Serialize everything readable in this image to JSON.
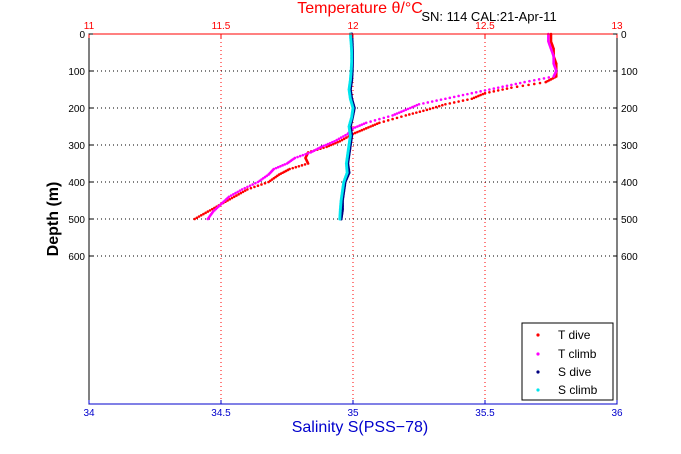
{
  "chart_data": {
    "type": "scatter",
    "title": "Temperature θ/°C",
    "subtitle": "SN: 114  CAL:21-Apr-11",
    "xlabel_top": "Temperature θ/°C",
    "xlabel_bottom": "Salinity S(PSS−78)",
    "ylabel": "Depth (m)",
    "y_axis_reversed": true,
    "ylim": [
      0,
      1000
    ],
    "yticks": [
      "0",
      "100",
      "200",
      "300",
      "400",
      "500",
      "600"
    ],
    "temperature_axis": {
      "range": [
        11,
        13
      ],
      "ticks": [
        "11",
        "11.5",
        "12",
        "12.5",
        "13"
      ],
      "color": "#ff0000"
    },
    "salinity_axis": {
      "range": [
        34,
        36
      ],
      "ticks": [
        "34",
        "34.5",
        "35",
        "35.5",
        "36"
      ],
      "color": "#0000cc"
    },
    "grid": "dotted",
    "legend_placement": "bottom-right",
    "series": [
      {
        "name": "T dive",
        "axis": "temperature",
        "color": "#ff0000",
        "depth": [
          0,
          20,
          40,
          60,
          80,
          100,
          115,
          130,
          145,
          160,
          175,
          190,
          205,
          220,
          240,
          255,
          270,
          290,
          305,
          320,
          335,
          350,
          365,
          380,
          400,
          420,
          440,
          460,
          480,
          500
        ],
        "values": [
          12.75,
          12.75,
          12.76,
          12.76,
          12.77,
          12.77,
          12.77,
          12.73,
          12.6,
          12.5,
          12.45,
          12.35,
          12.28,
          12.2,
          12.1,
          12.05,
          12.0,
          11.95,
          11.9,
          11.83,
          11.82,
          11.83,
          11.76,
          11.72,
          11.68,
          11.6,
          11.55,
          11.5,
          11.45,
          11.4
        ]
      },
      {
        "name": "T climb",
        "axis": "temperature",
        "color": "#ff00ff",
        "depth": [
          0,
          20,
          40,
          60,
          80,
          100,
          115,
          130,
          145,
          160,
          175,
          190,
          205,
          220,
          240,
          255,
          270,
          290,
          305,
          320,
          335,
          350,
          365,
          380,
          400,
          420,
          440,
          460,
          480,
          500
        ],
        "values": [
          12.74,
          12.74,
          12.75,
          12.76,
          12.76,
          12.77,
          12.76,
          12.65,
          12.55,
          12.45,
          12.35,
          12.25,
          12.2,
          12.15,
          12.05,
          12.0,
          11.98,
          11.93,
          11.88,
          11.84,
          11.78,
          11.75,
          11.7,
          11.68,
          11.64,
          11.58,
          11.53,
          11.5,
          11.47,
          11.45
        ]
      },
      {
        "name": "S dive",
        "axis": "salinity",
        "color": "#000080",
        "depth": [
          0,
          25,
          50,
          75,
          100,
          125,
          150,
          175,
          200,
          225,
          250,
          275,
          300,
          325,
          350,
          375,
          400,
          425,
          450,
          475,
          500
        ],
        "values": [
          34.995,
          34.997,
          34.998,
          34.998,
          34.997,
          34.995,
          34.99,
          34.995,
          35.005,
          34.998,
          34.99,
          34.995,
          34.99,
          34.985,
          34.98,
          34.985,
          34.97,
          34.965,
          34.96,
          34.96,
          34.955
        ]
      },
      {
        "name": "S climb",
        "axis": "salinity",
        "color": "#00e5ee",
        "depth": [
          0,
          25,
          50,
          75,
          100,
          125,
          150,
          175,
          200,
          225,
          250,
          275,
          300,
          325,
          350,
          375,
          400,
          425,
          450,
          475,
          500
        ],
        "values": [
          34.99,
          34.993,
          34.995,
          34.995,
          34.993,
          34.99,
          34.985,
          34.99,
          35.0,
          34.995,
          34.985,
          34.99,
          34.985,
          34.98,
          34.975,
          34.978,
          34.965,
          34.96,
          34.955,
          34.952,
          34.95
        ]
      }
    ]
  },
  "legend": {
    "entries": [
      "T dive",
      "T climb",
      "S dive",
      "S climb"
    ]
  }
}
